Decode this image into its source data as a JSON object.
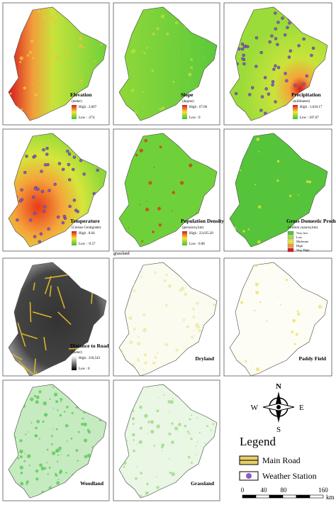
{
  "panels": [
    {
      "title": "Elevation",
      "unit": "(meter)",
      "high": "High : 2,667",
      "low": "Low : -274"
    },
    {
      "title": "Slope",
      "unit": "(degree)",
      "high": "High : 67.06",
      "low": "Low : 0"
    },
    {
      "title": "Precipitation",
      "unit": "(millimeter)",
      "high": "High : 1,610.17",
      "low": "Low : 107.67"
    },
    {
      "title": "Temperature",
      "unit": "(Celsius Centigrade)",
      "high": "High : 8.64",
      "low": "Low : -9.57"
    },
    {
      "title": "Population Density",
      "unit": "(person/sq km)",
      "high": "High : 22,635.20",
      "low": "Low : 0.08"
    },
    {
      "title": "Gross Domestic Product",
      "unit": "(million yuan/sq km)",
      "classes": [
        "Very low",
        "Low",
        "Moderate",
        "High",
        "Very High"
      ]
    },
    {
      "title": "Distance to Road",
      "unit": "(meter)",
      "high": "High : 218,543",
      "low": "Low : 0"
    },
    {
      "title": "Dryland"
    },
    {
      "title": "Paddy Field"
    },
    {
      "title": "Woodland"
    },
    {
      "title": "Grassland"
    }
  ],
  "stray_label": "grassland",
  "legend": {
    "north": "N",
    "south": "S",
    "west": "W",
    "east": "E",
    "title": "Legend",
    "items": [
      "Main Road",
      "Weather Station"
    ],
    "scale": [
      "0",
      "40",
      "80",
      "160"
    ],
    "scale_unit": "km"
  }
}
